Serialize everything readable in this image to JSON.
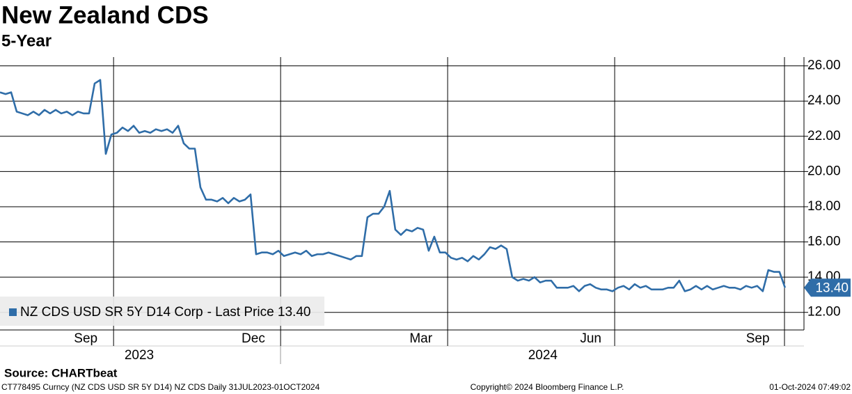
{
  "chart_data": {
    "type": "line",
    "title": "New Zealand CDS",
    "subtitle": "5-Year",
    "series": [
      {
        "name": "NZ CDS USD SR 5Y D14 Corp",
        "color": "#2f6da8",
        "values": [
          24.5,
          24.4,
          24.5,
          23.4,
          23.3,
          23.2,
          23.4,
          23.2,
          23.5,
          23.3,
          23.5,
          23.3,
          23.4,
          23.2,
          23.4,
          23.3,
          23.3,
          25.0,
          25.2,
          21.0,
          22.1,
          22.2,
          22.5,
          22.3,
          22.6,
          22.2,
          22.3,
          22.2,
          22.4,
          22.3,
          22.4,
          22.2,
          22.6,
          21.6,
          21.3,
          21.3,
          19.1,
          18.4,
          18.4,
          18.3,
          18.5,
          18.2,
          18.5,
          18.3,
          18.4,
          18.7,
          15.3,
          15.4,
          15.4,
          15.3,
          15.5,
          15.2,
          15.3,
          15.4,
          15.3,
          15.5,
          15.2,
          15.3,
          15.3,
          15.4,
          15.3,
          15.2,
          15.1,
          15.0,
          15.2,
          15.2,
          17.4,
          17.6,
          17.6,
          18.0,
          18.9,
          16.7,
          16.4,
          16.7,
          16.6,
          16.8,
          16.7,
          15.5,
          16.3,
          15.4,
          15.4,
          15.1,
          15.0,
          15.1,
          14.9,
          15.2,
          15.0,
          15.3,
          15.7,
          15.6,
          15.8,
          15.6,
          14.0,
          13.8,
          13.9,
          13.8,
          14.0,
          13.7,
          13.8,
          13.8,
          13.4,
          13.4,
          13.4,
          13.5,
          13.2,
          13.5,
          13.6,
          13.4,
          13.3,
          13.3,
          13.2,
          13.4,
          13.5,
          13.3,
          13.6,
          13.4,
          13.5,
          13.3,
          13.3,
          13.3,
          13.4,
          13.4,
          13.8,
          13.2,
          13.3,
          13.5,
          13.3,
          13.5,
          13.3,
          13.4,
          13.5,
          13.4,
          13.4,
          13.3,
          13.5,
          13.4,
          13.5,
          13.2,
          14.4,
          14.3,
          14.3,
          13.4
        ]
      }
    ],
    "legend_suffix": "- Last Price 13.40",
    "last_price_label": "13.40",
    "xlim": [
      0,
      144.4
    ],
    "xticks": [
      {
        "value": 15.4,
        "label": "Sep"
      },
      {
        "value": 45.5,
        "label": "Dec"
      },
      {
        "value": 75.6,
        "label": "Mar"
      },
      {
        "value": 106.1,
        "label": "Jun"
      },
      {
        "value": 136.1,
        "label": "Sep"
      }
    ],
    "x_year_labels": [
      {
        "value": 25,
        "label": "2023"
      },
      {
        "value": 97.5,
        "label": "2024"
      }
    ],
    "xgridlines": [
      20.4,
      50.4,
      80.4,
      110.4,
      140.9
    ],
    "ylim": [
      11,
      26.5
    ],
    "yticks": [
      {
        "value": 12,
        "label": "12.00"
      },
      {
        "value": 14,
        "label": "14.00"
      },
      {
        "value": 16,
        "label": "16.00"
      },
      {
        "value": 18,
        "label": "18.00"
      },
      {
        "value": 20,
        "label": "20.00"
      },
      {
        "value": 22,
        "label": "22.00"
      },
      {
        "value": 24,
        "label": "24.00"
      },
      {
        "value": 26,
        "label": "26.00"
      }
    ],
    "grid": true,
    "source": "Source: CHARTbeat",
    "footer_left": "CT778495 Curncy (NZ CDS USD SR 5Y D14) NZ CDS  Daily 31JUL2023-01OCT2024",
    "footer_center": "Copyright© 2024 Bloomberg Finance L.P.",
    "footer_right": "01-Oct-2024 07:49:02"
  }
}
